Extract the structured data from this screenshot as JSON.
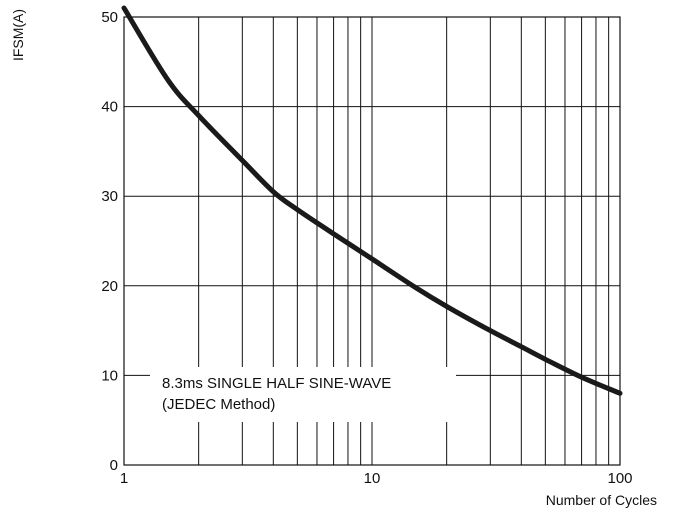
{
  "chart_data": {
    "type": "line",
    "title": "",
    "xlabel": "Number of Cycles",
    "ylabel": "IFSM(A)",
    "x_scale": "log",
    "xlim": [
      1,
      100
    ],
    "ylim": [
      0,
      50
    ],
    "x_ticks": [
      {
        "value": 1,
        "label": "1"
      },
      {
        "value": 10,
        "label": "10"
      },
      {
        "value": 100,
        "label": "100"
      }
    ],
    "y_ticks": [
      {
        "value": 0,
        "label": "0"
      },
      {
        "value": 10,
        "label": "10"
      },
      {
        "value": 20,
        "label": "20"
      },
      {
        "value": 30,
        "label": "30"
      },
      {
        "value": 40,
        "label": "40"
      },
      {
        "value": 50,
        "label": "50"
      }
    ],
    "grid": true,
    "annotation": [
      "8.3ms SINGLE HALF SINE-WAVE",
      "(JEDEC Method)"
    ],
    "series": [
      {
        "x": [
          1,
          1.5,
          2,
          3,
          4,
          5,
          7,
          10,
          15,
          20,
          30,
          40,
          50,
          70,
          100
        ],
        "y": [
          51,
          43,
          39,
          34,
          30.5,
          28.5,
          25.8,
          23,
          19.8,
          17.7,
          15,
          13.2,
          11.8,
          9.8,
          8
        ]
      }
    ]
  }
}
